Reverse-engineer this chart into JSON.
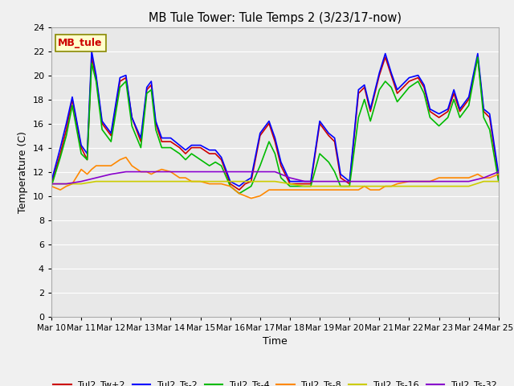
{
  "title": "MB Tule Tower: Tule Temps 2 (3/23/17-now)",
  "xlabel": "Time",
  "ylabel": "Temperature (C)",
  "ylim": [
    0,
    24
  ],
  "yticks": [
    0,
    2,
    4,
    6,
    8,
    10,
    12,
    14,
    16,
    18,
    20,
    22,
    24
  ],
  "xlim": [
    0,
    15
  ],
  "xtick_labels": [
    "Mar 10",
    "Mar 11",
    "Mar 12",
    "Mar 13",
    "Mar 14",
    "Mar 15",
    "Mar 16",
    "Mar 17",
    "Mar 18",
    "Mar 19",
    "Mar 20",
    "Mar 21",
    "Mar 22",
    "Mar 23",
    "Mar 24",
    "Mar 25"
  ],
  "bg_color": "#e8e8e8",
  "grid_color": "#ffffff",
  "fig_bg": "#f0f0f0",
  "series_colors": {
    "Tul2_Tw+2": "#cc0000",
    "Tul2_Ts-2": "#0000ff",
    "Tul2_Ts-4": "#00bb00",
    "Tul2_Ts-8": "#ff8800",
    "Tul2_Ts-16": "#cccc00",
    "Tul2_Ts-32": "#8800cc"
  },
  "Tw2_x": [
    0.0,
    0.3,
    0.5,
    0.7,
    1.0,
    1.2,
    1.35,
    1.5,
    1.7,
    2.0,
    2.3,
    2.5,
    2.7,
    3.0,
    3.2,
    3.35,
    3.5,
    3.7,
    4.0,
    4.3,
    4.5,
    4.7,
    5.0,
    5.3,
    5.5,
    5.7,
    6.0,
    6.3,
    6.5,
    6.7,
    7.0,
    7.3,
    7.5,
    7.7,
    8.0,
    8.15,
    8.3,
    8.5,
    8.7,
    9.0,
    9.3,
    9.5,
    9.7,
    10.0,
    10.3,
    10.5,
    10.7,
    11.0,
    11.2,
    11.4,
    11.6,
    12.0,
    12.3,
    12.5,
    12.7,
    13.0,
    13.3,
    13.5,
    13.7,
    14.0,
    14.3,
    14.5,
    14.7,
    15.0
  ],
  "Tw2_y": [
    11.0,
    13.5,
    15.5,
    18.0,
    14.0,
    13.0,
    21.5,
    19.8,
    16.0,
    15.0,
    19.5,
    19.8,
    16.5,
    14.5,
    18.8,
    19.2,
    16.0,
    14.5,
    14.5,
    14.0,
    13.5,
    14.0,
    14.0,
    13.5,
    13.5,
    13.0,
    11.0,
    10.5,
    11.0,
    11.2,
    15.0,
    16.0,
    14.5,
    12.5,
    11.0,
    11.0,
    11.0,
    11.0,
    11.0,
    16.0,
    15.0,
    14.5,
    11.5,
    11.0,
    18.5,
    19.0,
    17.0,
    20.0,
    21.5,
    20.0,
    18.5,
    19.5,
    19.8,
    19.0,
    17.0,
    16.5,
    17.0,
    18.5,
    17.0,
    18.0,
    21.5,
    17.0,
    16.5,
    11.5
  ],
  "Ts2_x": [
    0.0,
    0.3,
    0.5,
    0.7,
    1.0,
    1.2,
    1.35,
    1.5,
    1.7,
    2.0,
    2.3,
    2.5,
    2.7,
    3.0,
    3.2,
    3.35,
    3.5,
    3.7,
    4.0,
    4.3,
    4.5,
    4.7,
    5.0,
    5.3,
    5.5,
    5.7,
    6.0,
    6.3,
    6.5,
    6.7,
    7.0,
    7.3,
    7.5,
    7.7,
    8.0,
    8.15,
    8.3,
    8.5,
    8.7,
    9.0,
    9.3,
    9.5,
    9.7,
    10.0,
    10.3,
    10.5,
    10.7,
    11.0,
    11.2,
    11.4,
    11.6,
    12.0,
    12.3,
    12.5,
    12.7,
    13.0,
    13.3,
    13.5,
    13.7,
    14.0,
    14.3,
    14.5,
    14.7,
    15.0
  ],
  "Ts2_y": [
    11.2,
    14.0,
    16.0,
    18.2,
    14.2,
    13.5,
    22.0,
    20.0,
    16.2,
    15.2,
    19.8,
    20.0,
    16.5,
    14.8,
    19.0,
    19.5,
    16.2,
    14.8,
    14.8,
    14.2,
    13.8,
    14.2,
    14.2,
    13.8,
    13.8,
    13.2,
    11.2,
    10.8,
    11.2,
    11.5,
    15.2,
    16.2,
    14.8,
    12.8,
    11.2,
    11.2,
    11.2,
    11.2,
    11.2,
    16.2,
    15.2,
    14.8,
    11.8,
    11.2,
    18.8,
    19.2,
    17.2,
    20.2,
    21.8,
    20.2,
    18.8,
    19.8,
    20.0,
    19.2,
    17.2,
    16.8,
    17.2,
    18.8,
    17.2,
    18.2,
    21.8,
    17.2,
    16.8,
    11.8
  ],
  "Ts4_x": [
    0.0,
    0.3,
    0.5,
    0.7,
    1.0,
    1.2,
    1.35,
    1.5,
    1.7,
    2.0,
    2.3,
    2.5,
    2.7,
    3.0,
    3.2,
    3.35,
    3.5,
    3.7,
    4.0,
    4.3,
    4.5,
    4.7,
    5.0,
    5.3,
    5.5,
    5.7,
    6.0,
    6.3,
    6.5,
    6.7,
    7.0,
    7.3,
    7.5,
    7.7,
    8.0,
    8.15,
    8.3,
    8.5,
    8.7,
    9.0,
    9.3,
    9.5,
    9.7,
    10.0,
    10.3,
    10.5,
    10.7,
    11.0,
    11.2,
    11.4,
    11.6,
    12.0,
    12.3,
    12.5,
    12.7,
    13.0,
    13.3,
    13.5,
    13.7,
    14.0,
    14.3,
    14.5,
    14.7,
    15.0
  ],
  "Ts4_y": [
    10.8,
    13.2,
    15.0,
    17.5,
    13.5,
    13.0,
    21.0,
    19.5,
    15.5,
    14.5,
    19.0,
    19.5,
    15.8,
    14.0,
    18.5,
    18.8,
    15.5,
    14.0,
    14.0,
    13.5,
    13.0,
    13.5,
    13.0,
    12.5,
    12.8,
    12.5,
    10.8,
    10.2,
    10.5,
    10.8,
    12.5,
    14.5,
    13.5,
    11.5,
    10.8,
    10.8,
    10.8,
    10.8,
    10.8,
    13.5,
    12.8,
    12.0,
    10.8,
    10.8,
    16.5,
    18.0,
    16.2,
    18.8,
    19.5,
    19.0,
    17.8,
    19.0,
    19.5,
    18.5,
    16.5,
    15.8,
    16.5,
    18.0,
    16.5,
    17.5,
    21.5,
    16.5,
    15.5,
    11.2
  ],
  "Ts8_x": [
    0.0,
    0.3,
    0.5,
    0.7,
    1.0,
    1.2,
    1.35,
    1.5,
    1.7,
    2.0,
    2.3,
    2.5,
    2.7,
    3.0,
    3.2,
    3.35,
    3.5,
    3.7,
    4.0,
    4.3,
    4.5,
    4.7,
    5.0,
    5.3,
    5.5,
    5.7,
    6.0,
    6.3,
    6.5,
    6.7,
    7.0,
    7.3,
    7.5,
    7.7,
    8.0,
    8.15,
    8.3,
    8.5,
    8.7,
    9.0,
    9.3,
    9.5,
    9.7,
    10.0,
    10.3,
    10.5,
    10.7,
    11.0,
    11.2,
    11.4,
    11.6,
    12.0,
    12.3,
    12.5,
    12.7,
    13.0,
    13.3,
    13.5,
    13.7,
    14.0,
    14.3,
    14.5,
    14.7,
    15.0
  ],
  "Ts8_y": [
    10.8,
    10.5,
    10.8,
    11.0,
    12.2,
    11.8,
    12.2,
    12.5,
    12.5,
    12.5,
    13.0,
    13.2,
    12.5,
    12.0,
    12.0,
    11.8,
    12.0,
    12.2,
    12.0,
    11.5,
    11.5,
    11.2,
    11.2,
    11.0,
    11.0,
    11.0,
    10.8,
    10.2,
    10.0,
    9.8,
    10.0,
    10.5,
    10.5,
    10.5,
    10.5,
    10.5,
    10.5,
    10.5,
    10.5,
    10.5,
    10.5,
    10.5,
    10.5,
    10.5,
    10.5,
    10.8,
    10.5,
    10.5,
    10.8,
    10.8,
    11.0,
    11.2,
    11.2,
    11.2,
    11.2,
    11.5,
    11.5,
    11.5,
    11.5,
    11.5,
    11.8,
    11.5,
    11.5,
    11.8
  ],
  "Ts16_x": [
    0.0,
    0.5,
    1.0,
    1.5,
    2.0,
    2.5,
    3.0,
    3.5,
    4.0,
    4.5,
    5.0,
    5.5,
    6.0,
    6.5,
    7.0,
    7.5,
    8.0,
    8.5,
    9.0,
    9.5,
    10.0,
    10.5,
    11.0,
    11.5,
    12.0,
    12.5,
    13.0,
    13.5,
    14.0,
    14.5,
    15.0
  ],
  "Ts16_y": [
    11.0,
    11.0,
    11.0,
    11.2,
    11.2,
    11.2,
    11.2,
    11.2,
    11.2,
    11.2,
    11.2,
    11.2,
    11.2,
    11.2,
    11.2,
    11.2,
    11.0,
    10.8,
    10.8,
    10.8,
    10.8,
    10.8,
    10.8,
    10.8,
    10.8,
    10.8,
    10.8,
    10.8,
    10.8,
    11.2,
    11.2
  ],
  "Ts32_x": [
    0.0,
    0.5,
    1.0,
    1.5,
    2.0,
    2.5,
    3.0,
    3.5,
    4.0,
    4.5,
    5.0,
    5.5,
    6.0,
    6.5,
    7.0,
    7.5,
    8.0,
    8.5,
    9.0,
    9.5,
    10.0,
    10.5,
    11.0,
    11.5,
    12.0,
    12.5,
    13.0,
    13.5,
    14.0,
    14.5,
    15.0
  ],
  "Ts32_y": [
    11.0,
    11.0,
    11.2,
    11.5,
    11.8,
    12.0,
    12.0,
    12.0,
    12.0,
    12.0,
    12.0,
    12.0,
    12.0,
    12.0,
    12.0,
    12.0,
    11.5,
    11.2,
    11.2,
    11.2,
    11.2,
    11.2,
    11.2,
    11.2,
    11.2,
    11.2,
    11.2,
    11.2,
    11.2,
    11.5,
    12.0
  ],
  "legend_label": "MB_tule",
  "legend_box_color": "#ffffcc",
  "legend_text_color": "#cc0000"
}
